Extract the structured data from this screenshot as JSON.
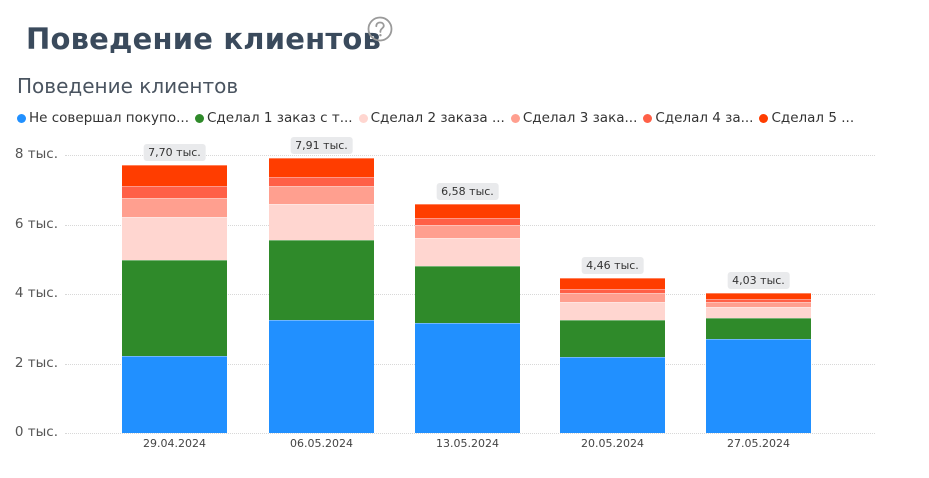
{
  "header": {
    "title": "Поведение клиентов",
    "help_icon": "question-circle-icon"
  },
  "chart": {
    "title": "Поведение клиентов",
    "legend": [
      {
        "label": "Не совершал покупо...",
        "color": "#2190ff"
      },
      {
        "label": "Сделал 1 заказ с т...",
        "color": "#2f8a2a"
      },
      {
        "label": "Сделал 2 заказа ...",
        "color": "#ffd6d0"
      },
      {
        "label": "Сделал 3 зака...",
        "color": "#ff9f8f"
      },
      {
        "label": "Сделал 4 за...",
        "color": "#ff6047"
      },
      {
        "label": "Сделал 5 ...",
        "color": "#ff3d00"
      }
    ],
    "y_ticks": [
      "0 тыс.",
      "2 тыс.",
      "4 тыс.",
      "6 тыс.",
      "8 тыс."
    ],
    "x_labels": [
      "29.04.2024",
      "06.05.2024",
      "13.05.2024",
      "20.05.2024",
      "27.05.2024"
    ],
    "total_labels": [
      "7,70 тыс.",
      "7,91 тыс.",
      "6,58 тыс.",
      "4,46 тыс.",
      "4,03 тыс."
    ]
  },
  "chart_data": {
    "type": "bar",
    "stacked": true,
    "title": "Поведение клиентов",
    "xlabel": "",
    "ylabel": "",
    "ylim": [
      0,
      8000
    ],
    "grid": true,
    "legend_position": "top",
    "categories": [
      "29.04.2024",
      "06.05.2024",
      "13.05.2024",
      "20.05.2024",
      "27.05.2024"
    ],
    "series": [
      {
        "name": "Не совершал покупо...",
        "color": "#2190ff",
        "values": [
          2220,
          3260,
          3160,
          2190,
          2700
        ]
      },
      {
        "name": "Сделал 1 заказ с т...",
        "color": "#2f8a2a",
        "values": [
          2760,
          2300,
          1640,
          1060,
          610
        ]
      },
      {
        "name": "Сделал 2 заказа ...",
        "color": "#ffd6d0",
        "values": [
          1240,
          1040,
          810,
          520,
          320
        ]
      },
      {
        "name": "Сделал 3 зака...",
        "color": "#ff9f8f",
        "values": [
          540,
          520,
          370,
          260,
          140
        ]
      },
      {
        "name": "Сделал 4 за...",
        "color": "#ff6047",
        "values": [
          340,
          260,
          200,
          110,
          90
        ]
      },
      {
        "name": "Сделал 5 ...",
        "color": "#ff3d00",
        "values": [
          600,
          530,
          400,
          320,
          170
        ]
      }
    ],
    "totals": [
      7700,
      7910,
      6580,
      4460,
      4030
    ],
    "total_labels": [
      "7,70 тыс.",
      "7,91 тыс.",
      "6,58 тыс.",
      "4,46 тыс.",
      "4,03 тыс."
    ]
  }
}
